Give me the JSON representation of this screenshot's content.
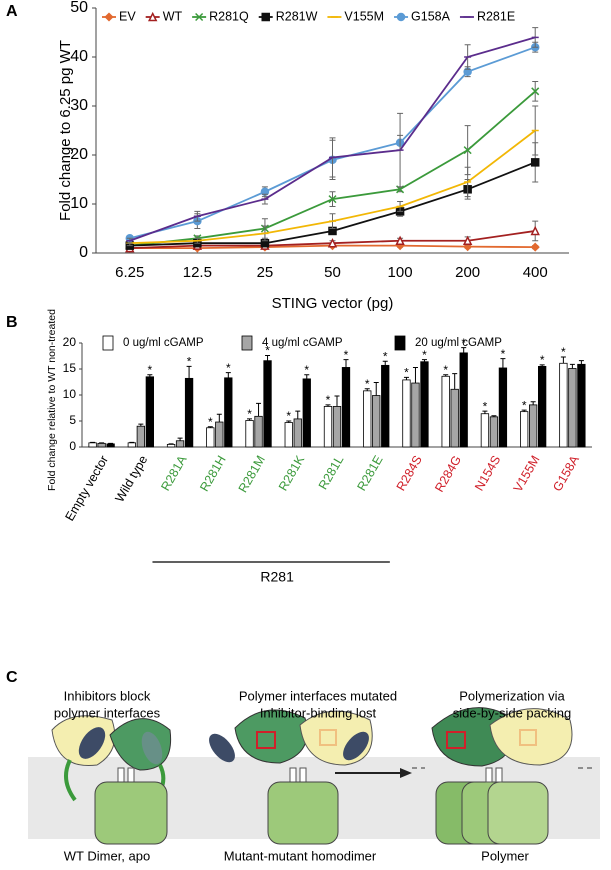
{
  "chart_data": [
    {
      "type": "line",
      "panel_label": "A",
      "y_label": "Fold change to 6.25 pg WT",
      "x_label": "STING vector (pg)",
      "categories": [
        "6.25",
        "12.5",
        "25",
        "50",
        "100",
        "200",
        "400"
      ],
      "ylim": [
        0,
        50
      ],
      "yticks": [
        0,
        10,
        20,
        30,
        40,
        50
      ],
      "grid": false,
      "legend": "top",
      "series": [
        {
          "name": "EV",
          "color": "#e2692f",
          "marker": "diamond",
          "values": [
            1,
            1,
            1.2,
            1.5,
            1.5,
            1.3,
            1.2
          ],
          "errors": [
            0.2,
            0.2,
            0.2,
            0.3,
            0.3,
            0.3,
            0.3
          ]
        },
        {
          "name": "WT",
          "color": "#a32020",
          "marker": "triangle",
          "values": [
            1,
            1.5,
            1.5,
            2,
            2.5,
            2.5,
            4.5
          ],
          "errors": [
            0.2,
            0.3,
            0.3,
            0.5,
            0.5,
            0.8,
            2
          ]
        },
        {
          "name": "R281Q",
          "color": "#3b9a3b",
          "marker": "cross",
          "values": [
            1.5,
            3,
            5,
            11,
            13,
            21,
            33
          ],
          "errors": [
            0.5,
            0.5,
            2,
            1.5,
            0.5,
            5,
            2
          ]
        },
        {
          "name": "R281W",
          "color": "#111111",
          "marker": "square",
          "values": [
            1.5,
            2,
            2,
            4.5,
            8.5,
            13,
            18.5
          ],
          "errors": [
            0.5,
            0.5,
            0.5,
            0.5,
            1,
            2,
            4
          ]
        },
        {
          "name": "V155M",
          "color": "#f2b705",
          "marker": "dash",
          "values": [
            2,
            2.5,
            4,
            6.5,
            9.5,
            14.5,
            25
          ],
          "errors": [
            0.5,
            0.5,
            1.5,
            1.5,
            1,
            3,
            5
          ]
        },
        {
          "name": "G158A",
          "color": "#5b9bd5",
          "marker": "circle",
          "values": [
            3,
            6.5,
            12.5,
            19,
            22.5,
            37,
            42
          ],
          "errors": [
            0.5,
            1.5,
            1,
            4,
            1.5,
            1,
            1
          ]
        },
        {
          "name": "R281E",
          "color": "#5b2c8c",
          "marker": "dash",
          "values": [
            2.5,
            7.5,
            11,
            19.5,
            21,
            40,
            44
          ],
          "errors": [
            0.5,
            1,
            1,
            4,
            7.5,
            2.5,
            2
          ]
        }
      ]
    },
    {
      "type": "bar",
      "panel_label": "B",
      "y_label": "Fold change relative to WT non-treated",
      "group_label": "R281",
      "categories": [
        "Empty vector",
        "Wild type",
        "R281A",
        "R281H",
        "R281M",
        "R281K",
        "R281L",
        "R281E",
        "R284S",
        "R284G",
        "N154S",
        "V155M",
        "G158A"
      ],
      "category_colors": [
        "#000000",
        "#000000",
        "#3b9a3b",
        "#3b9a3b",
        "#3b9a3b",
        "#3b9a3b",
        "#3b9a3b",
        "#3b9a3b",
        "#d0202a",
        "#d0202a",
        "#d0202a",
        "#d0202a",
        "#d0202a"
      ],
      "ylim": [
        0,
        20
      ],
      "yticks": [
        0,
        5,
        10,
        15,
        20
      ],
      "grid": false,
      "legend": "top",
      "series": [
        {
          "name": "0 ug/ml cGAMP",
          "color": "#ffffff",
          "values": [
            0.8,
            0.8,
            0.5,
            3.7,
            5.1,
            4.7,
            7.8,
            10.8,
            12.9,
            13.6,
            6.4,
            6.8,
            16.1
          ],
          "errors": [
            0.1,
            0.1,
            0.1,
            0.2,
            0.3,
            0.3,
            0.3,
            0.4,
            0.5,
            0.3,
            0.5,
            0.3,
            1.2
          ],
          "significance": [
            null,
            null,
            null,
            "*",
            "*",
            "*",
            "*",
            "*",
            "*",
            "*",
            "*",
            "*",
            "*"
          ]
        },
        {
          "name": "4 ug/ml cGAMP",
          "color": "#a6a6a6",
          "values": [
            0.7,
            4,
            1.2,
            4.8,
            5.9,
            5.4,
            7.8,
            9.9,
            12.3,
            11.1,
            5.8,
            8.1,
            15.1
          ],
          "errors": [
            0.1,
            0.4,
            0.5,
            1.5,
            2.5,
            1.5,
            2,
            2.5,
            3,
            3,
            0.2,
            0.6,
            0.8
          ],
          "significance": [
            null,
            null,
            null,
            null,
            null,
            null,
            null,
            null,
            null,
            null,
            null,
            null,
            null
          ]
        },
        {
          "name": "20 ug/ml cGAMP",
          "color": "#000000",
          "values": [
            0.6,
            13.5,
            13.2,
            13.3,
            16.6,
            13.1,
            15.3,
            15.7,
            16.4,
            18.1,
            15.2,
            15.5,
            15.9
          ],
          "errors": [
            0.1,
            0.4,
            2.3,
            1,
            1,
            0.8,
            1.5,
            0.8,
            0.4,
            1,
            1.8,
            0.3,
            0.7
          ],
          "significance": [
            null,
            "*",
            "*",
            "*",
            "*",
            "*",
            "*",
            "*",
            "*",
            "*",
            "*",
            "*",
            null
          ]
        }
      ]
    }
  ],
  "diagram": {
    "panel_label": "C",
    "headings": [
      [
        "Inhibitors block",
        "polymer interfaces"
      ],
      [
        "Polymer interfaces mutated",
        "Inhibitor-binding lost"
      ],
      [
        "Polymerization via",
        "side-by-side packing"
      ]
    ],
    "captions": [
      "WT Dimer, apo",
      "Mutant-mutant homodimer",
      "Polymer"
    ]
  }
}
